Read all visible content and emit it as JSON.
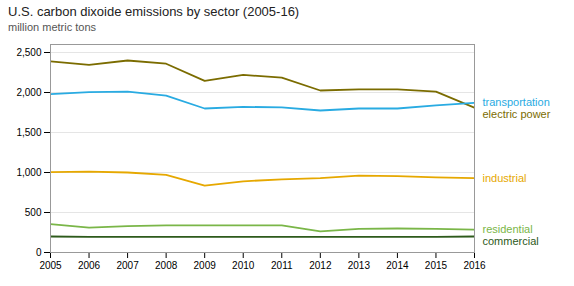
{
  "chart_data": {
    "type": "line",
    "title": "U.S. carbon dixoide emissions by sector (2005-16)",
    "subtitle": "million metric tons",
    "x": [
      2005,
      2006,
      2007,
      2008,
      2009,
      2010,
      2011,
      2012,
      2013,
      2014,
      2015,
      2016
    ],
    "series": [
      {
        "name": "electric power",
        "color": "#7b6c00",
        "values": [
          2390,
          2345,
          2400,
          2360,
          2145,
          2220,
          2185,
          2025,
          2040,
          2040,
          2010,
          1810
        ]
      },
      {
        "name": "transportation",
        "color": "#29abe2",
        "values": [
          1980,
          2005,
          2010,
          1960,
          1800,
          1820,
          1815,
          1775,
          1800,
          1800,
          1840,
          1870
        ]
      },
      {
        "name": "industrial",
        "color": "#e6a800",
        "values": [
          1005,
          1010,
          1000,
          970,
          835,
          890,
          915,
          930,
          960,
          955,
          940,
          930
        ]
      },
      {
        "name": "residential",
        "color": "#7ab648",
        "values": [
          355,
          310,
          330,
          340,
          340,
          340,
          340,
          265,
          295,
          300,
          295,
          285
        ]
      },
      {
        "name": "commercial",
        "color": "#2d5a1b",
        "values": [
          200,
          195,
          195,
          195,
          195,
          195,
          195,
          195,
          195,
          195,
          195,
          200
        ]
      }
    ],
    "xlim": [
      2005,
      2016
    ],
    "xticks": [
      2005,
      2006,
      2007,
      2008,
      2009,
      2010,
      2011,
      2012,
      2013,
      2014,
      2015,
      2016
    ],
    "ylim": [
      0,
      2600
    ],
    "yticks": [
      0,
      500,
      {
        "value": 1000,
        "label": "1,000"
      },
      {
        "value": 1500,
        "label": "1,500"
      },
      {
        "value": 2000,
        "label": "2,000"
      },
      {
        "value": 2500,
        "label": "2,500"
      }
    ],
    "grid": true
  }
}
